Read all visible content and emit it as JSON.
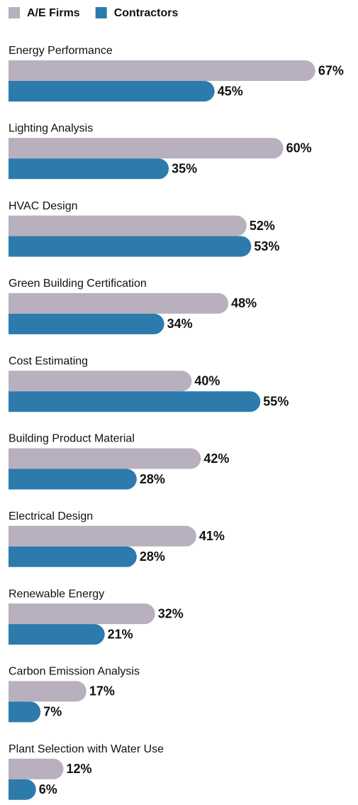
{
  "chart_data": {
    "type": "bar",
    "orientation": "horizontal",
    "categories": [
      "Energy Performance",
      "Lighting Analysis",
      "HVAC Design",
      "Green Building Certification",
      "Cost Estimating",
      "Building Product Material",
      "Electrical Design",
      "Renewable Energy",
      "Carbon Emission Analysis",
      "Plant Selection with Water Use"
    ],
    "series": [
      {
        "name": "A/E Firms",
        "color": "#b8b0be",
        "values": [
          67,
          60,
          52,
          48,
          40,
          42,
          41,
          32,
          17,
          12
        ],
        "value_labels": [
          "67%",
          "60%",
          "52%",
          "48%",
          "40%",
          "42%",
          "41%",
          "32%",
          "17%",
          "12%"
        ]
      },
      {
        "name": "Contractors",
        "color": "#2d7bad",
        "values": [
          45,
          35,
          53,
          34,
          55,
          28,
          28,
          21,
          7,
          6
        ],
        "value_labels": [
          "45%",
          "35%",
          "53%",
          "34%",
          "55%",
          "28%",
          "28%",
          "21%",
          "7%",
          "6%"
        ]
      }
    ],
    "legend": "top-left"
  }
}
